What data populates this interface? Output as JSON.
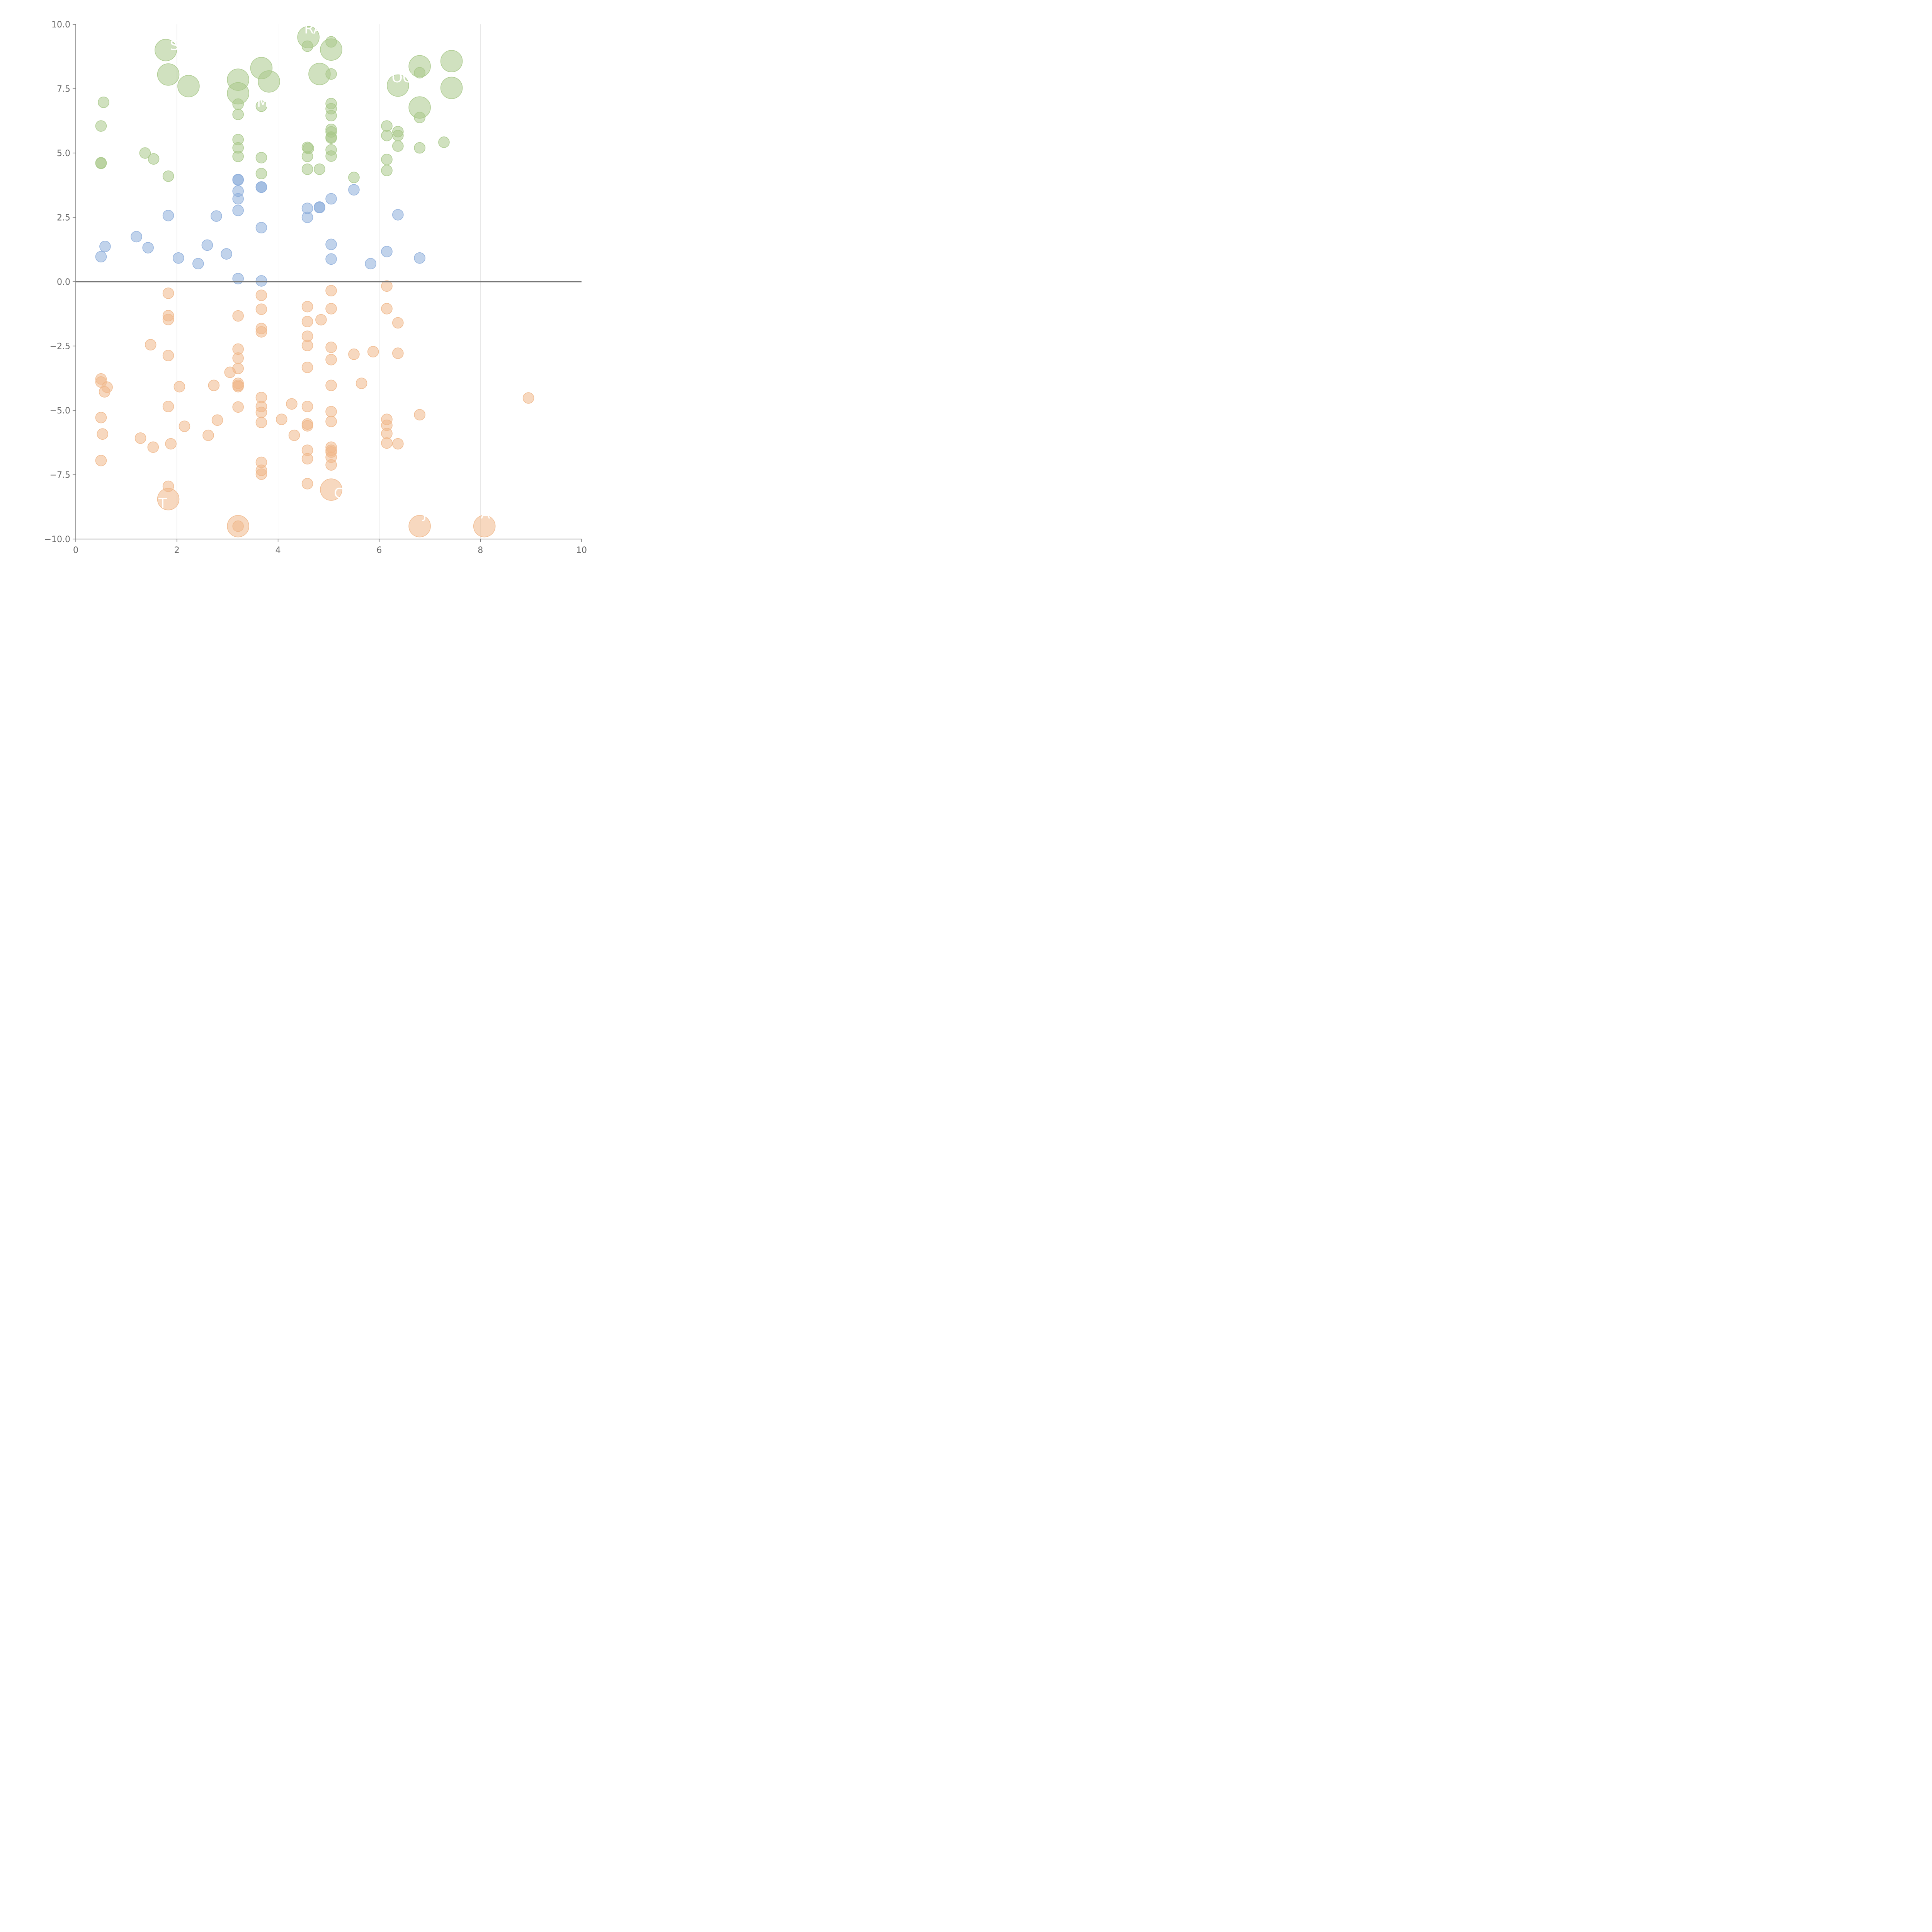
{
  "chart_data": {
    "type": "scatter",
    "title": "",
    "xlabel": "",
    "ylabel": "",
    "xlim": [
      0,
      10
    ],
    "ylim": [
      -10,
      10
    ],
    "x_ticks": [
      0,
      2,
      4,
      6,
      8,
      10
    ],
    "x_tick_labels": [
      "0",
      "2",
      "4",
      "6",
      "8",
      "10"
    ],
    "y_ticks": [
      10,
      7.5,
      5,
      2.5,
      0,
      -2.5,
      -5,
      -7.5,
      -10
    ],
    "y_tick_labels": [
      "10.0",
      "7.5",
      "5.0",
      "2.5",
      "0.0",
      "−2.5",
      "−5.0",
      "−7.5",
      "−10.0"
    ],
    "vertical_grid": true,
    "horizontal_grid": false,
    "zero_line": true,
    "series": [
      {
        "color": "#a9c98a",
        "points": [
          [
            1.78,
            9.0
          ],
          [
            1.83,
            8.05
          ],
          [
            2.23,
            7.6
          ],
          [
            3.21,
            7.85
          ],
          [
            3.21,
            7.32
          ],
          [
            3.67,
            8.3
          ],
          [
            3.82,
            7.78
          ],
          [
            4.6,
            9.5
          ],
          [
            4.82,
            8.07
          ],
          [
            5.05,
            9.02
          ],
          [
            6.37,
            7.62
          ],
          [
            6.8,
            8.37
          ],
          [
            7.43,
            8.57
          ],
          [
            7.43,
            7.53
          ],
          [
            6.8,
            6.77
          ],
          [
            0.55,
            6.97
          ],
          [
            0.5,
            6.05
          ],
          [
            0.5,
            4.62
          ],
          [
            0.5,
            4.6
          ],
          [
            1.37,
            5.0
          ],
          [
            1.54,
            4.77
          ],
          [
            1.83,
            4.1
          ],
          [
            3.21,
            6.9
          ],
          [
            3.21,
            6.5
          ],
          [
            3.21,
            5.52
          ],
          [
            3.21,
            5.2
          ],
          [
            3.21,
            4.87
          ],
          [
            3.67,
            6.82
          ],
          [
            3.67,
            4.82
          ],
          [
            3.67,
            4.2
          ],
          [
            4.58,
            9.15
          ],
          [
            4.58,
            5.22
          ],
          [
            4.6,
            5.18
          ],
          [
            4.58,
            4.87
          ],
          [
            4.58,
            4.37
          ],
          [
            4.82,
            4.37
          ],
          [
            5.05,
            9.32
          ],
          [
            5.05,
            8.07
          ],
          [
            5.05,
            6.92
          ],
          [
            5.05,
            6.72
          ],
          [
            5.05,
            6.45
          ],
          [
            5.05,
            5.92
          ],
          [
            5.05,
            5.82
          ],
          [
            5.05,
            5.62
          ],
          [
            5.05,
            5.58
          ],
          [
            5.05,
            5.12
          ],
          [
            5.05,
            4.88
          ],
          [
            5.5,
            4.05
          ],
          [
            6.15,
            6.05
          ],
          [
            6.15,
            5.68
          ],
          [
            6.15,
            4.75
          ],
          [
            6.15,
            4.32
          ],
          [
            6.37,
            5.83
          ],
          [
            6.37,
            5.68
          ],
          [
            6.37,
            5.27
          ],
          [
            6.8,
            8.12
          ],
          [
            6.8,
            6.38
          ],
          [
            6.8,
            5.2
          ],
          [
            7.28,
            5.42
          ]
        ],
        "sizes": [
          2,
          2,
          2,
          2,
          2,
          2,
          2,
          2,
          2,
          2,
          2,
          2,
          2,
          2,
          2,
          1,
          1,
          1,
          1,
          1,
          1,
          1,
          1,
          1,
          1,
          1,
          1,
          1,
          1,
          1,
          1,
          1,
          1,
          1,
          1,
          1,
          1,
          1,
          1,
          1,
          1,
          1,
          1,
          1,
          1,
          1,
          1,
          1,
          1,
          1,
          1,
          1,
          1,
          1,
          1,
          1,
          1,
          1,
          1
        ]
      },
      {
        "color": "#8eaedb",
        "points": [
          [
            0.5,
            0.97
          ],
          [
            0.58,
            1.37
          ],
          [
            1.2,
            1.75
          ],
          [
            1.43,
            1.32
          ],
          [
            1.83,
            2.57
          ],
          [
            2.03,
            0.92
          ],
          [
            2.42,
            0.7
          ],
          [
            2.6,
            1.42
          ],
          [
            2.78,
            2.55
          ],
          [
            2.98,
            1.08
          ],
          [
            3.21,
            3.97
          ],
          [
            3.21,
            3.95
          ],
          [
            3.21,
            3.52
          ],
          [
            3.21,
            3.22
          ],
          [
            3.21,
            2.77
          ],
          [
            3.21,
            0.12
          ],
          [
            3.67,
            3.68
          ],
          [
            3.67,
            3.67
          ],
          [
            3.67,
            2.1
          ],
          [
            3.67,
            0.03
          ],
          [
            4.58,
            2.85
          ],
          [
            4.58,
            2.5
          ],
          [
            4.82,
            2.9
          ],
          [
            4.82,
            2.88
          ],
          [
            5.05,
            3.22
          ],
          [
            5.05,
            1.45
          ],
          [
            5.05,
            0.88
          ],
          [
            5.5,
            3.57
          ],
          [
            5.83,
            0.7
          ],
          [
            6.15,
            1.17
          ],
          [
            6.37,
            2.6
          ],
          [
            6.8,
            0.92
          ]
        ],
        "sizes": [
          1,
          1,
          1,
          1,
          1,
          1,
          1,
          1,
          1,
          1,
          1,
          1,
          1,
          1,
          1,
          1,
          1,
          1,
          1,
          1,
          1,
          1,
          1,
          1,
          1,
          1,
          1,
          1,
          1,
          1,
          1,
          1
        ]
      },
      {
        "color": "#f0b88b",
        "points": [
          [
            1.83,
            -8.45
          ],
          [
            3.21,
            -9.5
          ],
          [
            5.05,
            -8.08
          ],
          [
            6.8,
            -9.5
          ],
          [
            8.08,
            -9.5
          ],
          [
            0.5,
            -3.78
          ],
          [
            0.5,
            -3.9
          ],
          [
            0.62,
            -4.1
          ],
          [
            0.57,
            -4.28
          ],
          [
            0.5,
            -5.28
          ],
          [
            0.53,
            -5.92
          ],
          [
            0.5,
            -6.95
          ],
          [
            1.28,
            -6.08
          ],
          [
            1.48,
            -2.45
          ],
          [
            1.53,
            -6.43
          ],
          [
            1.83,
            -0.45
          ],
          [
            1.83,
            -1.32
          ],
          [
            1.83,
            -1.47
          ],
          [
            1.83,
            -2.87
          ],
          [
            1.83,
            -4.85
          ],
          [
            1.83,
            -7.95
          ],
          [
            1.88,
            -6.3
          ],
          [
            2.05,
            -4.08
          ],
          [
            2.15,
            -5.62
          ],
          [
            2.62,
            -5.97
          ],
          [
            2.73,
            -4.03
          ],
          [
            2.8,
            -5.38
          ],
          [
            3.05,
            -3.52
          ],
          [
            3.21,
            -1.33
          ],
          [
            3.21,
            -2.62
          ],
          [
            3.21,
            -2.97
          ],
          [
            3.21,
            -3.37
          ],
          [
            3.21,
            -3.95
          ],
          [
            3.21,
            -4.03
          ],
          [
            3.21,
            -4.08
          ],
          [
            3.21,
            -4.87
          ],
          [
            3.21,
            -9.5
          ],
          [
            3.67,
            -0.53
          ],
          [
            3.67,
            -1.07
          ],
          [
            3.67,
            -1.82
          ],
          [
            3.67,
            -1.95
          ],
          [
            3.67,
            -4.5
          ],
          [
            3.67,
            -4.85
          ],
          [
            3.67,
            -5.08
          ],
          [
            3.67,
            -5.47
          ],
          [
            3.67,
            -7.02
          ],
          [
            3.67,
            -7.33
          ],
          [
            3.67,
            -7.48
          ],
          [
            4.07,
            -5.35
          ],
          [
            4.27,
            -4.75
          ],
          [
            4.32,
            -5.97
          ],
          [
            4.58,
            -0.97
          ],
          [
            4.58,
            -1.55
          ],
          [
            4.58,
            -2.12
          ],
          [
            4.58,
            -2.48
          ],
          [
            4.58,
            -3.33
          ],
          [
            4.58,
            -4.85
          ],
          [
            4.58,
            -5.53
          ],
          [
            4.58,
            -5.6
          ],
          [
            4.58,
            -6.55
          ],
          [
            4.58,
            -6.88
          ],
          [
            4.58,
            -7.85
          ],
          [
            4.85,
            -1.48
          ],
          [
            5.05,
            -0.35
          ],
          [
            5.05,
            -1.05
          ],
          [
            5.05,
            -2.55
          ],
          [
            5.05,
            -3.03
          ],
          [
            5.05,
            -4.03
          ],
          [
            5.05,
            -5.05
          ],
          [
            5.05,
            -5.43
          ],
          [
            5.05,
            -6.43
          ],
          [
            5.05,
            -6.55
          ],
          [
            5.05,
            -6.62
          ],
          [
            5.05,
            -6.82
          ],
          [
            5.05,
            -7.12
          ],
          [
            5.5,
            -2.82
          ],
          [
            5.65,
            -3.95
          ],
          [
            5.88,
            -2.72
          ],
          [
            6.15,
            -0.17
          ],
          [
            6.15,
            -1.05
          ],
          [
            6.15,
            -5.35
          ],
          [
            6.15,
            -5.58
          ],
          [
            6.15,
            -5.9
          ],
          [
            6.15,
            -6.27
          ],
          [
            6.37,
            -1.6
          ],
          [
            6.37,
            -2.78
          ],
          [
            6.37,
            -6.3
          ],
          [
            6.8,
            -5.17
          ],
          [
            8.95,
            -4.52
          ]
        ],
        "sizes": [
          2,
          2,
          2,
          2,
          2,
          1,
          1,
          1,
          1,
          1,
          1,
          1,
          1,
          1,
          1,
          1,
          1,
          1,
          1,
          1,
          1,
          1,
          1,
          1,
          1,
          1,
          1,
          1,
          1,
          1,
          1,
          1,
          1,
          1,
          1,
          1,
          1,
          1,
          1,
          1,
          1,
          1,
          1,
          1,
          1,
          1,
          1,
          1,
          1,
          1,
          1,
          1,
          1,
          1,
          1,
          1,
          1,
          1,
          1,
          1,
          1,
          1,
          1,
          1,
          1,
          1,
          1,
          1,
          1,
          1,
          1,
          1,
          1,
          1,
          1,
          1,
          1,
          1,
          1,
          1,
          1,
          1,
          1,
          1,
          1,
          1,
          1,
          1,
          1,
          1
        ]
      }
    ],
    "annotations": [
      {
        "text": "S",
        "x": 1.95,
        "y": 9.0
      },
      {
        "text": "RA",
        "x": 4.7,
        "y": 9.65
      },
      {
        "text": "OC",
        "x": 6.45,
        "y": 7.75
      },
      {
        "text": "M",
        "x": 3.7,
        "y": 6.8
      },
      {
        "text": "T",
        "x": 1.72,
        "y": -8.8
      },
      {
        "text": "C",
        "x": 5.2,
        "y": -8.4
      },
      {
        "text": "S",
        "x": 3.1,
        "y": -9.1
      },
      {
        "text": "J",
        "x": 6.9,
        "y": -9.2
      },
      {
        "text": "A",
        "x": 8.1,
        "y": -9.2
      }
    ]
  }
}
